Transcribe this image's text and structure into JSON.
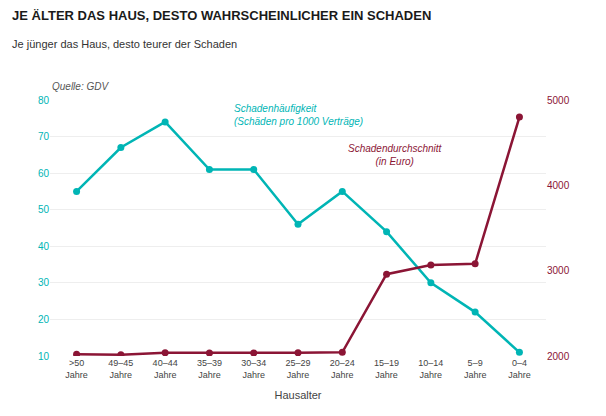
{
  "chart_data": {
    "type": "line",
    "title": "JE ÄLTER DAS HAUS, DESTO WAHRSCHEINLICHER EIN SCHADEN",
    "subtitle": "Je jünger das Haus, desto teurer der Schaden",
    "source": "Quelle: GDV",
    "xlabel": "Hausalter",
    "categories": [
      ">50\nJahre",
      "49–45\nJahre",
      "40–44\nJahre",
      "35–39\nJahre",
      "30–34\nJahre",
      "25–29\nJahre",
      "20–24\nJahre",
      "15–19\nJahre",
      "10–14\nJahre",
      "5–9\nJahre",
      "0–4\nJahre"
    ],
    "series": [
      {
        "name": "Schadenhäufigkeit\n(Schäden pro 1000 Verträge)",
        "color": "#00B5B5",
        "values": [
          55,
          67,
          74,
          61,
          61,
          46,
          55,
          44,
          30,
          22,
          11
        ]
      },
      {
        "name": "Schadendurchschnitt\n(in Euro)",
        "color": "#8B1535",
        "axis": "y2",
        "values": [
          2020,
          2015,
          2037,
          2036,
          2035,
          2037,
          2044,
          2959,
          3066,
          3080,
          4800
        ]
      }
    ],
    "ylim": [
      10,
      80
    ],
    "yticks": [
      10,
      20,
      30,
      40,
      50,
      60,
      70,
      80
    ],
    "y2lim": [
      2000,
      5000
    ],
    "y2ticks": [
      2000,
      3000,
      4000,
      5000
    ],
    "grid": true,
    "marker": "circle"
  }
}
